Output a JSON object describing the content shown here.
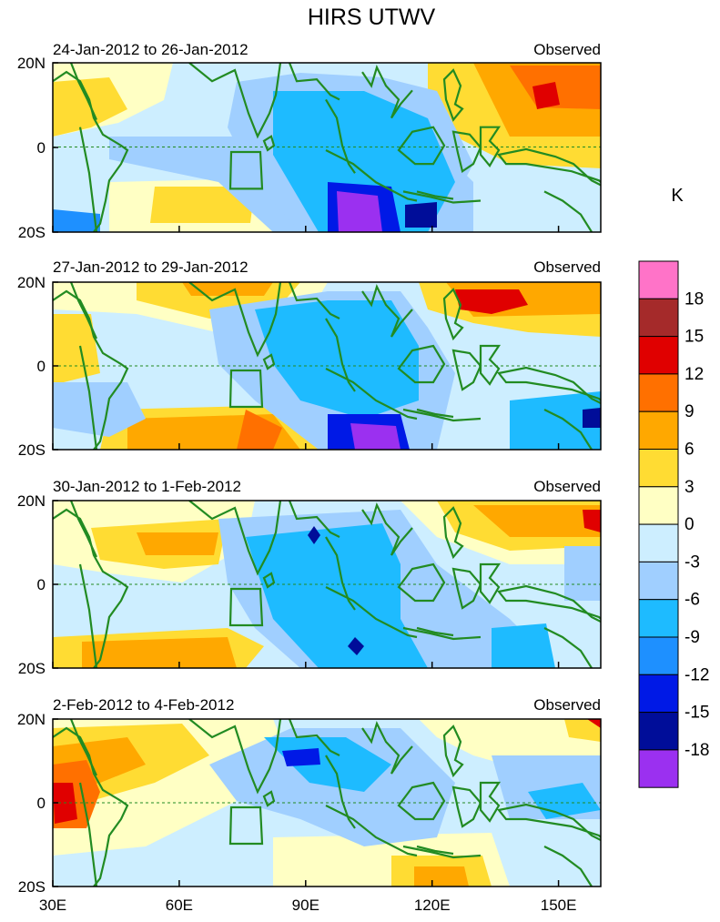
{
  "figure": {
    "title": "HIRS UTWV",
    "units_label": "K",
    "x_ticks": [
      "30E",
      "60E",
      "90E",
      "120E",
      "150E"
    ],
    "y_ticks": [
      "20N",
      "0",
      "20S"
    ],
    "domain": {
      "lon_range": [
        30,
        160
      ],
      "lat_range": [
        -20,
        20
      ]
    }
  },
  "panels": [
    {
      "date_range": "24-Jan-2012 to 26-Jan-2012",
      "label": "Observed"
    },
    {
      "date_range": "27-Jan-2012 to 29-Jan-2012",
      "label": "Observed"
    },
    {
      "date_range": "30-Jan-2012 to 1-Feb-2012",
      "label": "Observed"
    },
    {
      "date_range": "2-Feb-2012 to 4-Feb-2012",
      "label": "Observed"
    }
  ],
  "colorbar": {
    "labels": [
      "18",
      "15",
      "12",
      "9",
      "6",
      "3",
      "0",
      "-3",
      "-6",
      "-9",
      "-12",
      "-15",
      "-18"
    ],
    "colors": [
      "#ff73c8",
      "#a52a2a",
      "#e00000",
      "#ff7000",
      "#ffa800",
      "#ffdc33",
      "#ffffc4",
      "#cdeeff",
      "#a0cfff",
      "#1ebbff",
      "#1e90ff",
      "#0019e6",
      "#000d99",
      "#9b30f0"
    ]
  },
  "map_style": {
    "coastline_color": "#228b22",
    "box_color": "#228b22"
  }
}
